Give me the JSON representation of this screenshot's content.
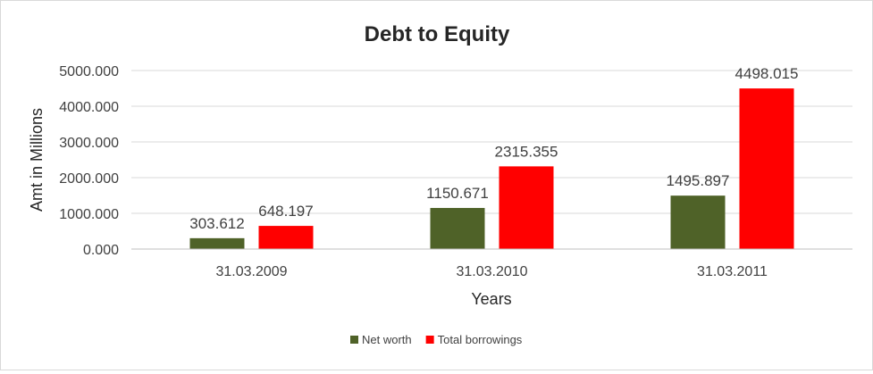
{
  "chart_data": {
    "type": "bar",
    "title": "Debt to Equity",
    "xlabel": "Years",
    "ylabel": "Amt in Millions",
    "categories": [
      "31.03.2009",
      "31.03.2010",
      "31.03.2011"
    ],
    "series": [
      {
        "name": "Net worth",
        "color": "#4f6228",
        "values": [
          303.612,
          1150.671,
          1495.897
        ],
        "labels": [
          "303.612",
          "1150.671",
          "1495.897"
        ]
      },
      {
        "name": "Total borrowings",
        "color": "#ff0000",
        "values": [
          648.197,
          2315.355,
          4498.015
        ],
        "labels": [
          "648.197",
          "2315.355",
          "4498.015"
        ]
      }
    ],
    "ylim": [
      0,
      5000
    ],
    "yticks": [
      0,
      1000,
      2000,
      3000,
      4000,
      5000
    ],
    "ytick_labels": [
      "0.000",
      "1000.000",
      "2000.000",
      "3000.000",
      "4000.000",
      "5000.000"
    ],
    "grid": true,
    "legend_position": "bottom"
  }
}
